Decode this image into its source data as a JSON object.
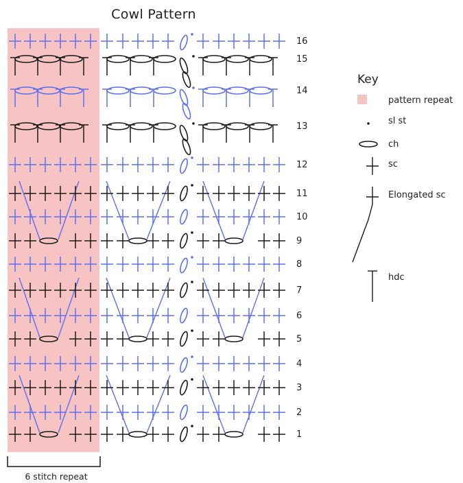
{
  "title": "Cowl Pattern",
  "colors": {
    "black": "#1a1a1a",
    "blue": "#5c6ef2",
    "repeat": "#f7c3c3"
  },
  "rows": [
    {
      "n": 1,
      "label": "1",
      "kind": "sc",
      "color": "black",
      "arcs": true
    },
    {
      "n": 2,
      "label": "2",
      "kind": "sc",
      "color": "blue",
      "arcs": false
    },
    {
      "n": 3,
      "label": "3",
      "kind": "sc",
      "color": "black",
      "arcs": false
    },
    {
      "n": 4,
      "label": "4",
      "kind": "sc",
      "color": "blue",
      "arcs": false
    },
    {
      "n": 5,
      "label": "5",
      "kind": "sc",
      "color": "black",
      "arcs": true
    },
    {
      "n": 6,
      "label": "6",
      "kind": "sc",
      "color": "blue",
      "arcs": false
    },
    {
      "n": 7,
      "label": "7",
      "kind": "sc",
      "color": "black",
      "arcs": false
    },
    {
      "n": 8,
      "label": "8",
      "kind": "sc",
      "color": "blue",
      "arcs": false
    },
    {
      "n": 9,
      "label": "9",
      "kind": "sc",
      "color": "black",
      "arcs": true
    },
    {
      "n": 10,
      "label": "10",
      "kind": "sc",
      "color": "blue",
      "arcs": false
    },
    {
      "n": 11,
      "label": "11",
      "kind": "sc",
      "color": "black",
      "arcs": false
    },
    {
      "n": 12,
      "label": "12",
      "kind": "sc",
      "color": "blue",
      "arcs": false
    },
    {
      "n": 13,
      "label": "13",
      "kind": "hdc",
      "color": "black",
      "arcs": false
    },
    {
      "n": 14,
      "label": "14",
      "kind": "hdc",
      "color": "blue",
      "arcs": false
    },
    {
      "n": 15,
      "label": "15",
      "kind": "hdc",
      "color": "black",
      "arcs": false
    },
    {
      "n": 16,
      "label": "16",
      "kind": "sc",
      "color": "blue",
      "arcs": false
    }
  ],
  "repeat_label": "6 stitch repeat",
  "key": {
    "heading": "Key",
    "items": [
      {
        "id": "pattern-repeat",
        "label": "pattern repeat"
      },
      {
        "id": "sl-st",
        "label": "sl st"
      },
      {
        "id": "ch",
        "label": "ch"
      },
      {
        "id": "sc",
        "label": "sc"
      },
      {
        "id": "elongated-sc",
        "label": "Elongated sc"
      },
      {
        "id": "hdc",
        "label": "hdc"
      }
    ]
  }
}
